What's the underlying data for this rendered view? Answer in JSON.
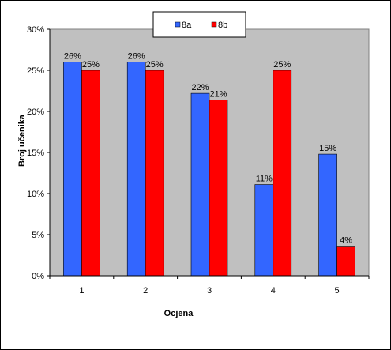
{
  "chart_data": {
    "type": "bar",
    "title": "",
    "xlabel": "Ocjena",
    "ylabel": "Broj učenika",
    "categories": [
      "1",
      "2",
      "3",
      "4",
      "5"
    ],
    "series": [
      {
        "name": "8a",
        "color": "#3366ff",
        "values": [
          26,
          26,
          22.2,
          11.1,
          14.8
        ],
        "labels": [
          "26%",
          "26%",
          "22%",
          "11%",
          "15%"
        ]
      },
      {
        "name": "8b",
        "color": "#ff0000",
        "values": [
          25,
          25,
          21.4,
          25,
          3.6
        ],
        "labels": [
          "25%",
          "25%",
          "21%",
          "25%",
          "4%"
        ]
      }
    ],
    "ylim": [
      0,
      30
    ],
    "yticks": [
      "0%",
      "5%",
      "10%",
      "15%",
      "20%",
      "25%",
      "30%"
    ],
    "grid": false,
    "plot_background": "#c0c0c0",
    "legend_position": "top-center"
  }
}
